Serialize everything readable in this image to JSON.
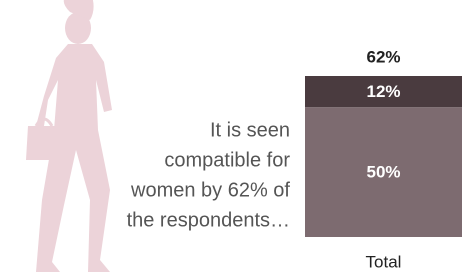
{
  "chart_data": {
    "type": "stacked-bar",
    "categories": [
      "Total"
    ],
    "series": [
      {
        "color": "#7d6b70",
        "values": [
          50
        ],
        "value_labels": [
          "50%"
        ]
      },
      {
        "color": "#4a3b3f",
        "values": [
          12
        ],
        "value_labels": [
          "12%"
        ]
      }
    ],
    "totals": [
      62
    ],
    "total_labels": [
      "62%"
    ],
    "annotation": [
      "It is seen",
      "compatible for",
      "women by 62% of",
      "the respondents…"
    ]
  }
}
